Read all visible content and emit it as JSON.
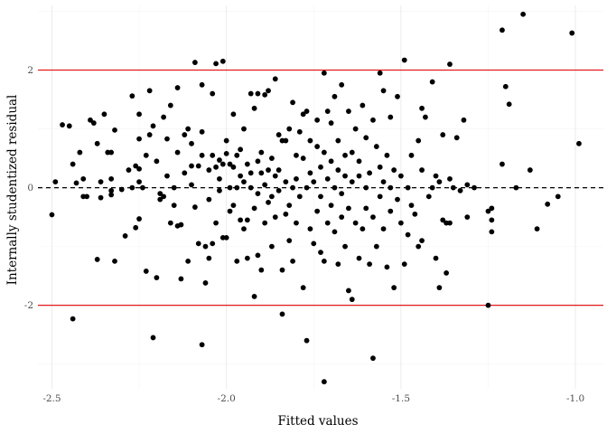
{
  "chart_data": {
    "type": "scatter",
    "xlabel": "Fitted values",
    "ylabel": "Internally studentized residual",
    "xlim": [
      -2.54,
      -0.92
    ],
    "ylim": [
      -3.42,
      3.1
    ],
    "xticks": [
      -2.5,
      -2.0,
      -1.5,
      -1.0
    ],
    "xtick_labels": [
      "-2.5",
      "-2.0",
      "-1.5",
      "-1.0"
    ],
    "yticks": [
      -2,
      0,
      2
    ],
    "ytick_labels": [
      "-2",
      "0",
      "2"
    ],
    "grid": true,
    "reference_lines": [
      {
        "y": 2,
        "color": "#e31a1c",
        "style": "solid"
      },
      {
        "y": -2,
        "color": "#e31a1c",
        "style": "solid"
      },
      {
        "y": 0,
        "color": "#000000",
        "style": "dashed"
      }
    ],
    "point_color": "#000000",
    "points": [
      [
        -2.5,
        -0.46
      ],
      [
        -2.49,
        0.1
      ],
      [
        -2.47,
        1.07
      ],
      [
        -2.45,
        1.05
      ],
      [
        -2.44,
        0.4
      ],
      [
        -2.44,
        -2.23
      ],
      [
        -2.43,
        0.08
      ],
      [
        -2.42,
        0.6
      ],
      [
        -2.41,
        -0.15
      ],
      [
        -2.41,
        0.15
      ],
      [
        -2.4,
        -0.15
      ],
      [
        -2.39,
        1.15
      ],
      [
        -2.38,
        1.1
      ],
      [
        -2.37,
        -1.22
      ],
      [
        -2.37,
        0.75
      ],
      [
        -2.36,
        0.1
      ],
      [
        -2.36,
        -0.17
      ],
      [
        -2.35,
        1.25
      ],
      [
        -2.34,
        0.6
      ],
      [
        -2.33,
        -0.05
      ],
      [
        -2.33,
        0.15
      ],
      [
        -2.33,
        -0.12
      ],
      [
        -2.33,
        0.6
      ],
      [
        -2.32,
        -1.25
      ],
      [
        -2.32,
        0.98
      ],
      [
        -2.3,
        -0.03
      ],
      [
        -2.29,
        -0.82
      ],
      [
        -2.28,
        0.3
      ],
      [
        -2.27,
        1.56
      ],
      [
        -2.27,
        0.0
      ],
      [
        -2.26,
        -0.68
      ],
      [
        -2.26,
        0.37
      ],
      [
        -2.25,
        0.32
      ],
      [
        -2.25,
        0.83
      ],
      [
        -2.25,
        0.1
      ],
      [
        -2.25,
        -0.53
      ],
      [
        -2.25,
        1.25
      ],
      [
        -2.24,
        0.0
      ],
      [
        -2.23,
        -1.42
      ],
      [
        -2.23,
        0.55
      ],
      [
        -2.22,
        0.9
      ],
      [
        -2.22,
        1.65
      ],
      [
        -2.21,
        -2.55
      ],
      [
        -2.21,
        1.05
      ],
      [
        -2.2,
        0.45
      ],
      [
        -2.2,
        -1.53
      ],
      [
        -2.19,
        -0.1
      ],
      [
        -2.19,
        -0.2
      ],
      [
        -2.18,
        1.2
      ],
      [
        -2.18,
        -0.15
      ],
      [
        -2.17,
        0.83
      ],
      [
        -2.17,
        0.2
      ],
      [
        -2.16,
        1.4
      ],
      [
        -2.16,
        -0.6
      ],
      [
        -2.15,
        0.0
      ],
      [
        -2.15,
        -0.3
      ],
      [
        -2.14,
        1.7
      ],
      [
        -2.14,
        0.6
      ],
      [
        -2.14,
        -0.65
      ],
      [
        -2.13,
        -0.63
      ],
      [
        -2.13,
        -1.55
      ],
      [
        -2.12,
        0.25
      ],
      [
        -2.12,
        0.9
      ],
      [
        -2.11,
        -1.25
      ],
      [
        -2.11,
        1.0
      ],
      [
        -2.1,
        0.75
      ],
      [
        -2.1,
        0.05
      ],
      [
        -2.1,
        0.37
      ],
      [
        -2.09,
        2.13
      ],
      [
        -2.09,
        -0.33
      ],
      [
        -2.08,
        -0.95
      ],
      [
        -2.08,
        0.37
      ],
      [
        -2.07,
        -2.67
      ],
      [
        -2.07,
        0.55
      ],
      [
        -2.07,
        1.75
      ],
      [
        -2.07,
        0.95
      ],
      [
        -2.06,
        -1.62
      ],
      [
        -2.06,
        -1.0
      ],
      [
        -2.05,
        -1.2
      ],
      [
        -2.05,
        0.3
      ],
      [
        -2.05,
        -0.2
      ],
      [
        -2.04,
        1.6
      ],
      [
        -2.04,
        -0.95
      ],
      [
        -2.04,
        0.55
      ],
      [
        -2.03,
        2.11
      ],
      [
        -2.03,
        0.35
      ],
      [
        -2.03,
        -0.6
      ],
      [
        -2.02,
        0.47
      ],
      [
        -2.02,
        -0.05
      ],
      [
        -2.02,
        0.15
      ],
      [
        -2.01,
        2.15
      ],
      [
        -2.01,
        -0.85
      ],
      [
        -2.01,
        0.4
      ],
      [
        -2.0,
        0.58
      ],
      [
        -2.0,
        0.8
      ],
      [
        -2.0,
        -0.85
      ],
      [
        -1.99,
        0.4
      ],
      [
        -1.99,
        0.0
      ],
      [
        -1.99,
        -0.4
      ],
      [
        -1.98,
        0.35
      ],
      [
        -1.98,
        1.25
      ],
      [
        -1.98,
        -0.3
      ],
      [
        -1.97,
        0.55
      ],
      [
        -1.97,
        -1.25
      ],
      [
        -1.97,
        0.0
      ],
      [
        -1.96,
        -0.55
      ],
      [
        -1.96,
        0.2
      ],
      [
        -1.96,
        0.65
      ],
      [
        -1.95,
        -0.7
      ],
      [
        -1.95,
        1.0
      ],
      [
        -1.95,
        0.1
      ],
      [
        -1.94,
        -0.55
      ],
      [
        -1.94,
        0.4
      ],
      [
        -1.94,
        -1.2
      ],
      [
        -1.93,
        1.6
      ],
      [
        -1.93,
        0.0
      ],
      [
        -1.93,
        0.25
      ],
      [
        -1.92,
        -1.85
      ],
      [
        -1.92,
        1.35
      ],
      [
        -1.92,
        -0.35
      ],
      [
        -1.91,
        0.45
      ],
      [
        -1.91,
        1.6
      ],
      [
        -1.91,
        -0.1
      ],
      [
        -1.91,
        -1.15
      ],
      [
        -1.9,
        0.25
      ],
      [
        -1.9,
        -1.4
      ],
      [
        -1.9,
        0.6
      ],
      [
        -1.89,
        0.05
      ],
      [
        -1.89,
        1.58
      ],
      [
        -1.89,
        -0.6
      ],
      [
        -1.88,
        0.3
      ],
      [
        -1.88,
        -0.25
      ],
      [
        -1.88,
        1.65
      ],
      [
        -1.87,
        0.5
      ],
      [
        -1.87,
        -0.15
      ],
      [
        -1.87,
        -1.0
      ],
      [
        -1.86,
        0.2
      ],
      [
        -1.86,
        1.85
      ],
      [
        -1.86,
        -0.5
      ],
      [
        -1.85,
        0.3
      ],
      [
        -1.85,
        -0.05
      ],
      [
        -1.85,
        0.9
      ],
      [
        -1.84,
        -2.15
      ],
      [
        -1.84,
        0.8
      ],
      [
        -1.84,
        -1.4
      ],
      [
        -1.83,
        0.1
      ],
      [
        -1.83,
        -0.45
      ],
      [
        -1.83,
        0.8
      ],
      [
        -1.82,
        1.0
      ],
      [
        -1.82,
        -0.3
      ],
      [
        -1.82,
        -0.9
      ],
      [
        -1.81,
        0.0
      ],
      [
        -1.81,
        1.45
      ],
      [
        -1.81,
        -1.25
      ],
      [
        -1.8,
        0.55
      ],
      [
        -1.8,
        0.15
      ],
      [
        -1.8,
        -0.6
      ],
      [
        -1.79,
        0.95
      ],
      [
        -1.79,
        -0.15
      ],
      [
        -1.78,
        1.25
      ],
      [
        -1.78,
        -1.7
      ],
      [
        -1.78,
        0.5
      ],
      [
        -1.77,
        -2.6
      ],
      [
        -1.77,
        1.3
      ],
      [
        -1.77,
        0.0
      ],
      [
        -1.76,
        0.8
      ],
      [
        -1.76,
        -0.7
      ],
      [
        -1.76,
        0.25
      ],
      [
        -1.75,
        0.1
      ],
      [
        -1.75,
        -0.95
      ],
      [
        -1.74,
        0.7
      ],
      [
        -1.74,
        -0.4
      ],
      [
        -1.74,
        1.15
      ],
      [
        -1.73,
        0.35
      ],
      [
        -1.73,
        -0.15
      ],
      [
        -1.73,
        -1.1
      ],
      [
        -1.72,
        -3.3
      ],
      [
        -1.72,
        1.95
      ],
      [
        -1.72,
        0.6
      ],
      [
        -1.72,
        -1.25
      ],
      [
        -1.71,
        0.15
      ],
      [
        -1.71,
        -0.6
      ],
      [
        -1.71,
        1.3
      ],
      [
        -1.7,
        0.45
      ],
      [
        -1.7,
        -0.3
      ],
      [
        -1.7,
        1.1
      ],
      [
        -1.69,
        0.0
      ],
      [
        -1.69,
        -0.75
      ],
      [
        -1.69,
        1.55
      ],
      [
        -1.68,
        0.8
      ],
      [
        -1.68,
        -1.3
      ],
      [
        -1.68,
        0.3
      ],
      [
        -1.67,
        -0.5
      ],
      [
        -1.67,
        1.75
      ],
      [
        -1.67,
        -0.1
      ],
      [
        -1.66,
        0.55
      ],
      [
        -1.66,
        -1.0
      ],
      [
        -1.66,
        0.2
      ],
      [
        -1.65,
        -0.35
      ],
      [
        -1.65,
        1.3
      ],
      [
        -1.65,
        -1.75
      ],
      [
        -1.64,
        0.1
      ],
      [
        -1.64,
        -1.9
      ],
      [
        -1.64,
        0.6
      ],
      [
        -1.63,
        -0.6
      ],
      [
        -1.63,
        1.0
      ],
      [
        -1.62,
        0.2
      ],
      [
        -1.62,
        -1.2
      ],
      [
        -1.62,
        0.45
      ],
      [
        -1.61,
        -0.7
      ],
      [
        -1.61,
        1.4
      ],
      [
        -1.6,
        0.0
      ],
      [
        -1.6,
        -0.35
      ],
      [
        -1.6,
        0.85
      ],
      [
        -1.59,
        -1.3
      ],
      [
        -1.59,
        0.25
      ],
      [
        -1.58,
        -2.9
      ],
      [
        -1.58,
        1.15
      ],
      [
        -1.58,
        -0.5
      ],
      [
        -1.57,
        0.7
      ],
      [
        -1.57,
        -1.0
      ],
      [
        -1.56,
        1.95
      ],
      [
        -1.56,
        0.35
      ],
      [
        -1.56,
        -0.15
      ],
      [
        -1.55,
        1.65
      ],
      [
        -1.55,
        -0.7
      ],
      [
        -1.55,
        0.1
      ],
      [
        -1.54,
        -1.35
      ],
      [
        -1.54,
        0.55
      ],
      [
        -1.53,
        0.0
      ],
      [
        -1.53,
        -0.4
      ],
      [
        -1.53,
        1.2
      ],
      [
        -1.52,
        -1.7
      ],
      [
        -1.52,
        0.3
      ],
      [
        -1.51,
        1.55
      ],
      [
        -1.51,
        -0.2
      ],
      [
        -1.5,
        -0.6
      ],
      [
        -1.5,
        0.2
      ],
      [
        -1.49,
        2.17
      ],
      [
        -1.49,
        -1.3
      ],
      [
        -1.48,
        0.0
      ],
      [
        -1.48,
        -0.8
      ],
      [
        -1.47,
        0.55
      ],
      [
        -1.47,
        -0.3
      ],
      [
        -1.46,
        -0.45
      ],
      [
        -1.45,
        0.8
      ],
      [
        -1.45,
        -1.0
      ],
      [
        -1.44,
        1.35
      ],
      [
        -1.44,
        0.3
      ],
      [
        -1.44,
        -0.9
      ],
      [
        -1.43,
        1.2
      ],
      [
        -1.42,
        -0.15
      ],
      [
        -1.41,
        1.8
      ],
      [
        -1.41,
        0.0
      ],
      [
        -1.4,
        0.2
      ],
      [
        -1.4,
        -1.2
      ],
      [
        -1.39,
        0.1
      ],
      [
        -1.39,
        -1.7
      ],
      [
        -1.38,
        -0.55
      ],
      [
        -1.38,
        0.9
      ],
      [
        -1.37,
        -0.6
      ],
      [
        -1.37,
        -1.45
      ],
      [
        -1.36,
        2.1
      ],
      [
        -1.36,
        0.15
      ],
      [
        -1.36,
        -0.6
      ],
      [
        -1.35,
        0.0
      ],
      [
        -1.34,
        0.85
      ],
      [
        -1.33,
        -0.05
      ],
      [
        -1.32,
        1.15
      ],
      [
        -1.31,
        0.05
      ],
      [
        -1.31,
        -0.5
      ],
      [
        -1.29,
        0.0
      ],
      [
        -1.25,
        -2.0
      ],
      [
        -1.25,
        -0.4
      ],
      [
        -1.24,
        -0.55
      ],
      [
        -1.24,
        -0.75
      ],
      [
        -1.24,
        -0.35
      ],
      [
        -1.21,
        2.68
      ],
      [
        -1.21,
        0.4
      ],
      [
        -1.2,
        1.72
      ],
      [
        -1.19,
        1.42
      ],
      [
        -1.17,
        0.0
      ],
      [
        -1.15,
        2.95
      ],
      [
        -1.13,
        0.3
      ],
      [
        -1.11,
        -0.7
      ],
      [
        -1.08,
        -0.28
      ],
      [
        -1.05,
        -0.15
      ],
      [
        -1.01,
        2.63
      ],
      [
        -0.99,
        0.75
      ]
    ]
  }
}
